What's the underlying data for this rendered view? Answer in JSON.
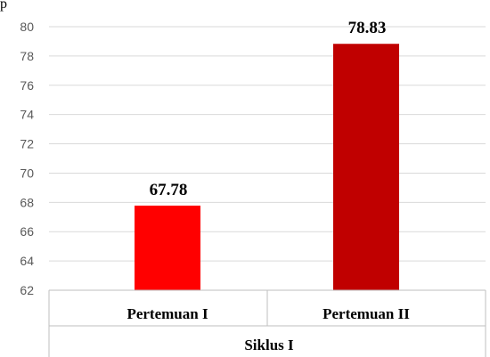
{
  "top_text": "p",
  "chart_data": {
    "type": "bar",
    "title": "",
    "xlabel": "",
    "ylabel": "",
    "categories": [
      "Pertemuan I",
      "Pertemuan II"
    ],
    "group_label": "Siklus I",
    "values": [
      67.78,
      78.83
    ],
    "value_labels": [
      "67.78",
      "78.83"
    ],
    "colors": [
      "#ff0000",
      "#c00000"
    ],
    "ylim": [
      62,
      80
    ],
    "yticks": [
      "62",
      "64",
      "66",
      "68",
      "70",
      "72",
      "74",
      "76",
      "78",
      "80"
    ],
    "grid": true
  }
}
